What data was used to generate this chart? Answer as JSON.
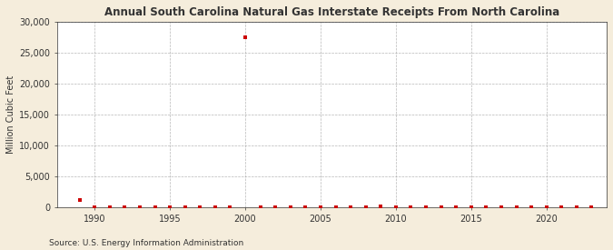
{
  "title": "Annual South Carolina Natural Gas Interstate Receipts From North Carolina",
  "ylabel": "Million Cubic Feet",
  "source": "Source: U.S. Energy Information Administration",
  "fig_background_color": "#f5eddc",
  "plot_background_color": "#ffffff",
  "grid_color": "#999999",
  "marker_color": "#cc0000",
  "axis_color": "#333333",
  "xlim": [
    1987.5,
    2024
  ],
  "ylim": [
    0,
    30000
  ],
  "yticks": [
    0,
    5000,
    10000,
    15000,
    20000,
    25000,
    30000
  ],
  "xticks": [
    1990,
    1995,
    2000,
    2005,
    2010,
    2015,
    2020
  ],
  "years": [
    1989,
    1990,
    1991,
    1992,
    1993,
    1994,
    1995,
    1996,
    1997,
    1998,
    1999,
    2000,
    2001,
    2002,
    2003,
    2004,
    2005,
    2006,
    2007,
    2008,
    2009,
    2010,
    2011,
    2012,
    2013,
    2014,
    2015,
    2016,
    2017,
    2018,
    2019,
    2020,
    2021,
    2022,
    2023
  ],
  "values": [
    1200,
    0,
    0,
    0,
    0,
    0,
    0,
    0,
    0,
    0,
    0,
    27500,
    0,
    0,
    0,
    0,
    0,
    0,
    100,
    100,
    150,
    0,
    0,
    0,
    0,
    0,
    0,
    0,
    0,
    0,
    0,
    0,
    0,
    0,
    0
  ],
  "title_fontsize": 8.5,
  "label_fontsize": 7,
  "tick_fontsize": 7,
  "source_fontsize": 6.5
}
